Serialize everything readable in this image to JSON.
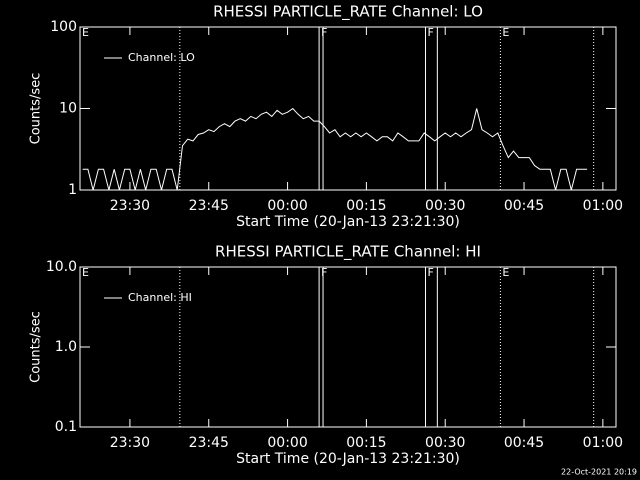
{
  "chart_data": [
    {
      "type": "line",
      "title": "RHESSI PARTICLE_RATE Channel: LO",
      "xlabel": "Start Time (20-Jan-13 23:21:30)",
      "ylabel": "Counts/sec",
      "log_y": true,
      "ylim": [
        1,
        100
      ],
      "yticks": [
        100,
        10,
        1
      ],
      "xlim": [
        "23:20:30",
        "01:02:30"
      ],
      "xticks": [
        "23:30",
        "23:45",
        "00:00",
        "00:15",
        "00:30",
        "00:45",
        "01:00"
      ],
      "legend": "upper left",
      "color": "#ffffff",
      "x": [
        "23:21",
        "23:22",
        "23:23",
        "23:24",
        "23:25",
        "23:26",
        "23:27",
        "23:28",
        "23:29",
        "23:30",
        "23:31",
        "23:32",
        "23:33",
        "23:34",
        "23:35",
        "23:36",
        "23:37",
        "23:38",
        "23:39",
        "23:40",
        "23:41",
        "23:42",
        "23:43",
        "23:44",
        "23:45",
        "23:46",
        "23:47",
        "23:48",
        "23:49",
        "23:50",
        "23:51",
        "23:52",
        "23:53",
        "23:54",
        "23:55",
        "23:56",
        "23:57",
        "23:58",
        "23:59",
        "00:00",
        "00:01",
        "00:02",
        "00:03",
        "00:04",
        "00:05",
        "00:06",
        "00:07",
        "00:08",
        "00:09",
        "00:10",
        "00:11",
        "00:12",
        "00:13",
        "00:14",
        "00:15",
        "00:16",
        "00:17",
        "00:18",
        "00:19",
        "00:20",
        "00:21",
        "00:22",
        "00:23",
        "00:24",
        "00:25",
        "00:26",
        "00:27",
        "00:28",
        "00:29",
        "00:30",
        "00:31",
        "00:32",
        "00:33",
        "00:34",
        "00:35",
        "00:36",
        "00:37",
        "00:38",
        "00:39",
        "00:40",
        "00:41",
        "00:42",
        "00:43",
        "00:44",
        "00:45",
        "00:46",
        "00:47",
        "00:48",
        "00:49",
        "00:50",
        "00:51",
        "00:52",
        "00:53",
        "00:54",
        "00:55",
        "00:56",
        "00:57"
      ],
      "series": [
        {
          "name": "Channel: LO",
          "values": [
            1.8,
            1.8,
            1,
            1.8,
            1.8,
            1,
            1.8,
            1,
            1.8,
            1.8,
            1,
            1.8,
            1,
            1.8,
            1.8,
            1,
            1.8,
            1.8,
            1,
            3.5,
            4.2,
            4,
            4.8,
            5,
            5.5,
            5.2,
            6,
            6.5,
            6,
            7,
            7.5,
            7,
            8,
            7.5,
            8.5,
            9,
            8,
            9.5,
            8.5,
            9,
            10,
            8.5,
            7.5,
            8,
            7,
            7,
            6,
            5,
            5.5,
            4.5,
            5,
            4.5,
            5,
            4.5,
            5,
            4.5,
            4,
            4.5,
            4.5,
            4,
            5,
            4.5,
            4,
            4,
            4,
            5,
            4.5,
            4,
            4.5,
            5,
            4.5,
            5,
            4.5,
            5,
            5.5,
            10,
            5.5,
            5,
            4.5,
            5,
            3.5,
            2.5,
            3,
            2.5,
            2.5,
            2.5,
            2,
            1.8,
            1.8,
            1.8,
            1,
            1.8,
            1.8,
            1,
            1.8,
            1.8,
            1.8
          ]
        }
      ],
      "vlines": [
        {
          "x": "23:39:30",
          "style": "dotted"
        },
        {
          "x": "00:06:00",
          "style": "solid"
        },
        {
          "x": "00:06:45",
          "style": "solid"
        },
        {
          "x": "00:26:15",
          "style": "solid"
        },
        {
          "x": "00:28:30",
          "style": "solid"
        },
        {
          "x": "00:40:30",
          "style": "dotted"
        },
        {
          "x": "00:58:15",
          "style": "dotted"
        }
      ],
      "annotations": [
        {
          "x": "23:20:30",
          "text": "E"
        },
        {
          "x": "00:06:00",
          "text": "F"
        },
        {
          "x": "00:26:15",
          "text": "F"
        },
        {
          "x": "00:40:30",
          "text": "E"
        }
      ]
    },
    {
      "type": "line",
      "title": "RHESSI PARTICLE_RATE Channel: HI",
      "xlabel": "Start Time (20-Jan-13 23:21:30)",
      "ylabel": "Counts/sec",
      "log_y": true,
      "ylim": [
        0.1,
        10
      ],
      "yticks": [
        {
          "value": 10,
          "label": "10.0"
        },
        {
          "value": 1,
          "label": "1.0"
        },
        0.1
      ],
      "xlim": [
        "23:20:30",
        "01:02:30"
      ],
      "xticks": [
        "23:30",
        "23:45",
        "00:00",
        "00:15",
        "00:30",
        "00:45",
        "01:00"
      ],
      "legend": "upper left",
      "color": "#ffffff",
      "x": [],
      "series": [
        {
          "name": "Channel: HI",
          "values": []
        }
      ],
      "vlines": [
        {
          "x": "23:39:30",
          "style": "dotted"
        },
        {
          "x": "00:06:00",
          "style": "solid"
        },
        {
          "x": "00:06:45",
          "style": "solid"
        },
        {
          "x": "00:26:15",
          "style": "solid"
        },
        {
          "x": "00:28:30",
          "style": "solid"
        },
        {
          "x": "00:40:30",
          "style": "dotted"
        },
        {
          "x": "00:58:15",
          "style": "dotted"
        }
      ],
      "annotations": [
        {
          "x": "23:20:30",
          "text": "E"
        },
        {
          "x": "00:06:00",
          "text": "F"
        },
        {
          "x": "00:26:15",
          "text": "F"
        },
        {
          "x": "00:40:30",
          "text": "E"
        }
      ]
    }
  ],
  "footer": "22-Oct-2021 20:19"
}
